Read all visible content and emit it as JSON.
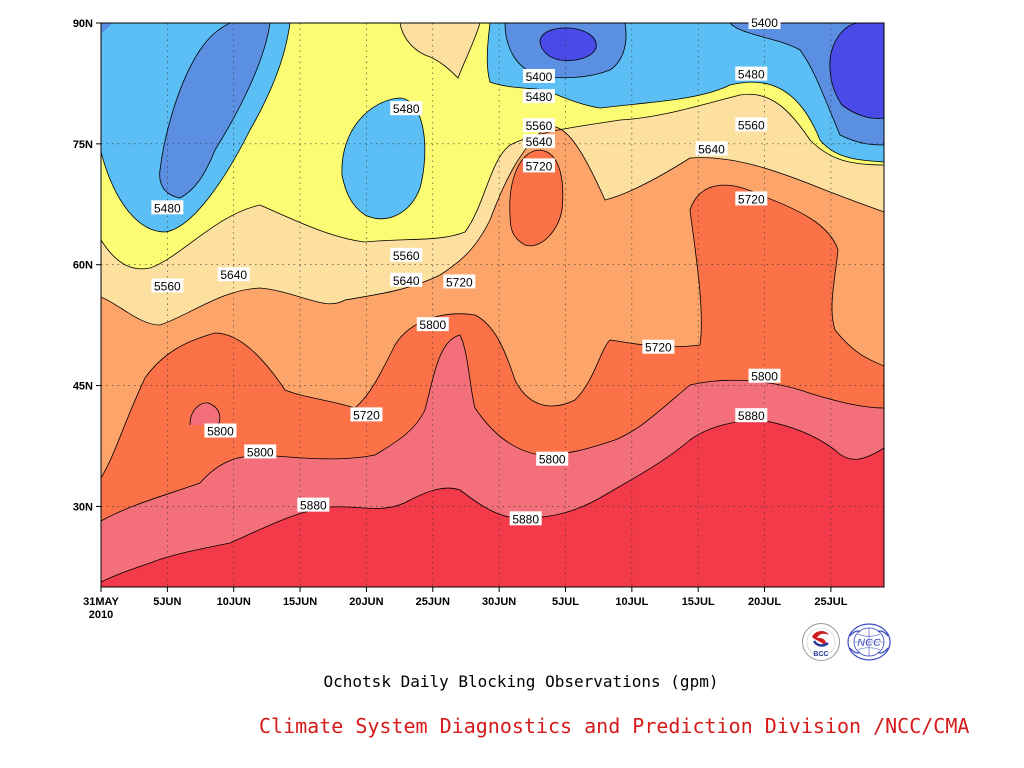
{
  "chart_data": {
    "type": "heatmap",
    "title": "Ochotsk Daily Blocking Observations (gpm)",
    "x_ticks": [
      "31MAY\n2010",
      "5JUN",
      "10JUN",
      "15JUN",
      "20JUN",
      "25JUN",
      "30JUN",
      "5JUL",
      "10JUL",
      "15JUL",
      "20JUL",
      "25JUL"
    ],
    "x_range": [
      "2010-05-31",
      "2010-07-29"
    ],
    "y_ticks": [
      "30N",
      "45N",
      "60N",
      "75N",
      "90N"
    ],
    "y_range": [
      20,
      90
    ],
    "grid": true,
    "contour_levels": [
      5400,
      5480,
      5560,
      5640,
      5720,
      5800,
      5880
    ],
    "colors": {
      "below_5320": "#4a4ae8",
      "5320_5400": "#5a8fe2",
      "5400_5480": "#5bbff5",
      "5480_5560": "#fbfb74",
      "5560_5640": "#fde0a0",
      "5640_5720": "#fca46a",
      "5720_5800": "#fb7148",
      "5800_5880": "#f3707a",
      "above_5880": "#f23a4b"
    },
    "contour_labels": [
      {
        "text": "5480",
        "date": "2010-06-05",
        "lat": 67
      },
      {
        "text": "5560",
        "date": "2010-06-05",
        "lat": 57.3
      },
      {
        "text": "5640",
        "date": "2010-06-10",
        "lat": 58.7
      },
      {
        "text": "5800",
        "date": "2010-06-09",
        "lat": 39.3
      },
      {
        "text": "5800",
        "date": "2010-06-12",
        "lat": 36.7
      },
      {
        "text": "5720",
        "date": "2010-06-20",
        "lat": 41.3
      },
      {
        "text": "5880",
        "date": "2010-06-16",
        "lat": 30.1
      },
      {
        "text": "5480",
        "date": "2010-06-23",
        "lat": 79.3
      },
      {
        "text": "5560",
        "date": "2010-06-23",
        "lat": 61.1
      },
      {
        "text": "5640",
        "date": "2010-06-23",
        "lat": 58
      },
      {
        "text": "5720",
        "date": "2010-06-27",
        "lat": 57.8
      },
      {
        "text": "5800",
        "date": "2010-06-25",
        "lat": 52.5
      },
      {
        "text": "5400",
        "date": "2010-07-03",
        "lat": 83.3
      },
      {
        "text": "5480",
        "date": "2010-07-03",
        "lat": 80.8
      },
      {
        "text": "5560",
        "date": "2010-07-03",
        "lat": 77.2
      },
      {
        "text": "5640",
        "date": "2010-07-03",
        "lat": 75.2
      },
      {
        "text": "5720",
        "date": "2010-07-03",
        "lat": 72.2
      },
      {
        "text": "5800",
        "date": "2010-07-04",
        "lat": 35.8
      },
      {
        "text": "5880",
        "date": "2010-07-02",
        "lat": 28.4
      },
      {
        "text": "5720",
        "date": "2010-07-12",
        "lat": 49.7
      },
      {
        "text": "5400",
        "date": "2010-07-20",
        "lat": 90
      },
      {
        "text": "5480",
        "date": "2010-07-19",
        "lat": 83.6
      },
      {
        "text": "5560",
        "date": "2010-07-19",
        "lat": 77.3
      },
      {
        "text": "5640",
        "date": "2010-07-16",
        "lat": 74.3
      },
      {
        "text": "5720",
        "date": "2010-07-19",
        "lat": 68.1
      },
      {
        "text": "5800",
        "date": "2010-07-20",
        "lat": 46.1
      },
      {
        "text": "5880",
        "date": "2010-07-19",
        "lat": 41.2
      }
    ]
  },
  "footer": {
    "credit": "Climate System Diagnostics and Prediction Division /NCC/CMA"
  },
  "logos": {
    "bcc": {
      "text": "BCC",
      "colors": [
        "#d01c1c",
        "#2a3a9c"
      ]
    },
    "ncc": {
      "text": "NCC",
      "colors": [
        "#3a4ac0"
      ]
    }
  }
}
